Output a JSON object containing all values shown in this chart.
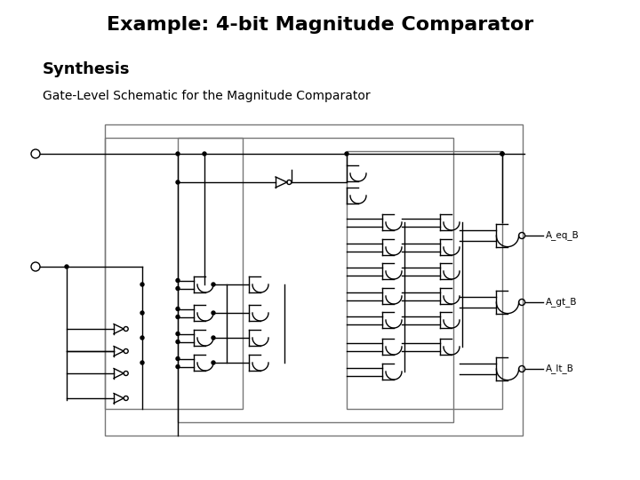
{
  "title": "Example: 4-bit Magnitude Comparator",
  "subtitle": "Synthesis",
  "description": "Gate-Level Schematic for the Magnitude Comparator",
  "bg_color": "#ffffff",
  "title_fontsize": 16,
  "subtitle_fontsize": 13,
  "desc_fontsize": 10,
  "output_labels": [
    "A_eq_B",
    "A_gt_B",
    "A_lt_B"
  ],
  "line_color": "#000000",
  "line_width": 1.0
}
